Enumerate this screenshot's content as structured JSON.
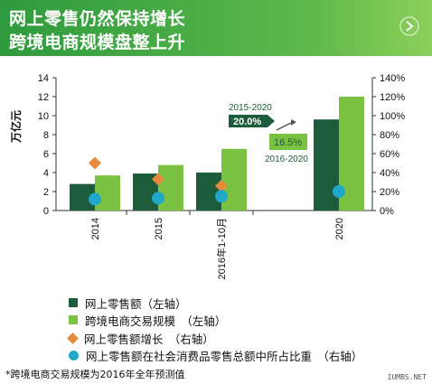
{
  "header": {
    "line1": "网上零售仍然保持增长",
    "line2": "跨境电商规模盘整上升"
  },
  "chart_data": {
    "type": "bar",
    "categories": [
      "2014",
      "2015",
      "2016年1-10月",
      "2020"
    ],
    "ylabel": "万亿元",
    "ylim": [
      0,
      14
    ],
    "yticks": [
      0,
      2,
      4,
      6,
      8,
      10,
      12,
      14
    ],
    "y2lim": [
      0,
      140
    ],
    "y2ticks": [
      "0%",
      "20%",
      "40%",
      "60%",
      "80%",
      "100%",
      "120%",
      "140%"
    ],
    "series": [
      {
        "name": "网上零售额（左轴）",
        "kind": "bar",
        "color": "#1d5c3a",
        "values": [
          2.8,
          3.9,
          4.0,
          9.6
        ]
      },
      {
        "name": "跨境电商交易规模　（左轴）",
        "kind": "bar",
        "color": "#7cc242",
        "values": [
          3.7,
          4.8,
          6.5,
          12.0
        ]
      },
      {
        "name": "网上零售额增长　（右轴）",
        "kind": "marker-diamond",
        "color": "#e58a3c",
        "values": [
          50,
          33,
          26,
          null
        ]
      },
      {
        "name": "网上零售额在社会消费品零售总额中所占比重　（右轴）",
        "kind": "marker-circle",
        "color": "#1fa8c9",
        "values": [
          12,
          13,
          15,
          20
        ]
      }
    ],
    "annotations": {
      "top_label": "2015-2020",
      "top_value": "20.0%",
      "bottom_value": "16.5%",
      "bottom_label": "2016-2020"
    }
  },
  "footnote": "*跨境电商交易规模为2016年全年预测值",
  "watermark": "IUMBS.NET"
}
